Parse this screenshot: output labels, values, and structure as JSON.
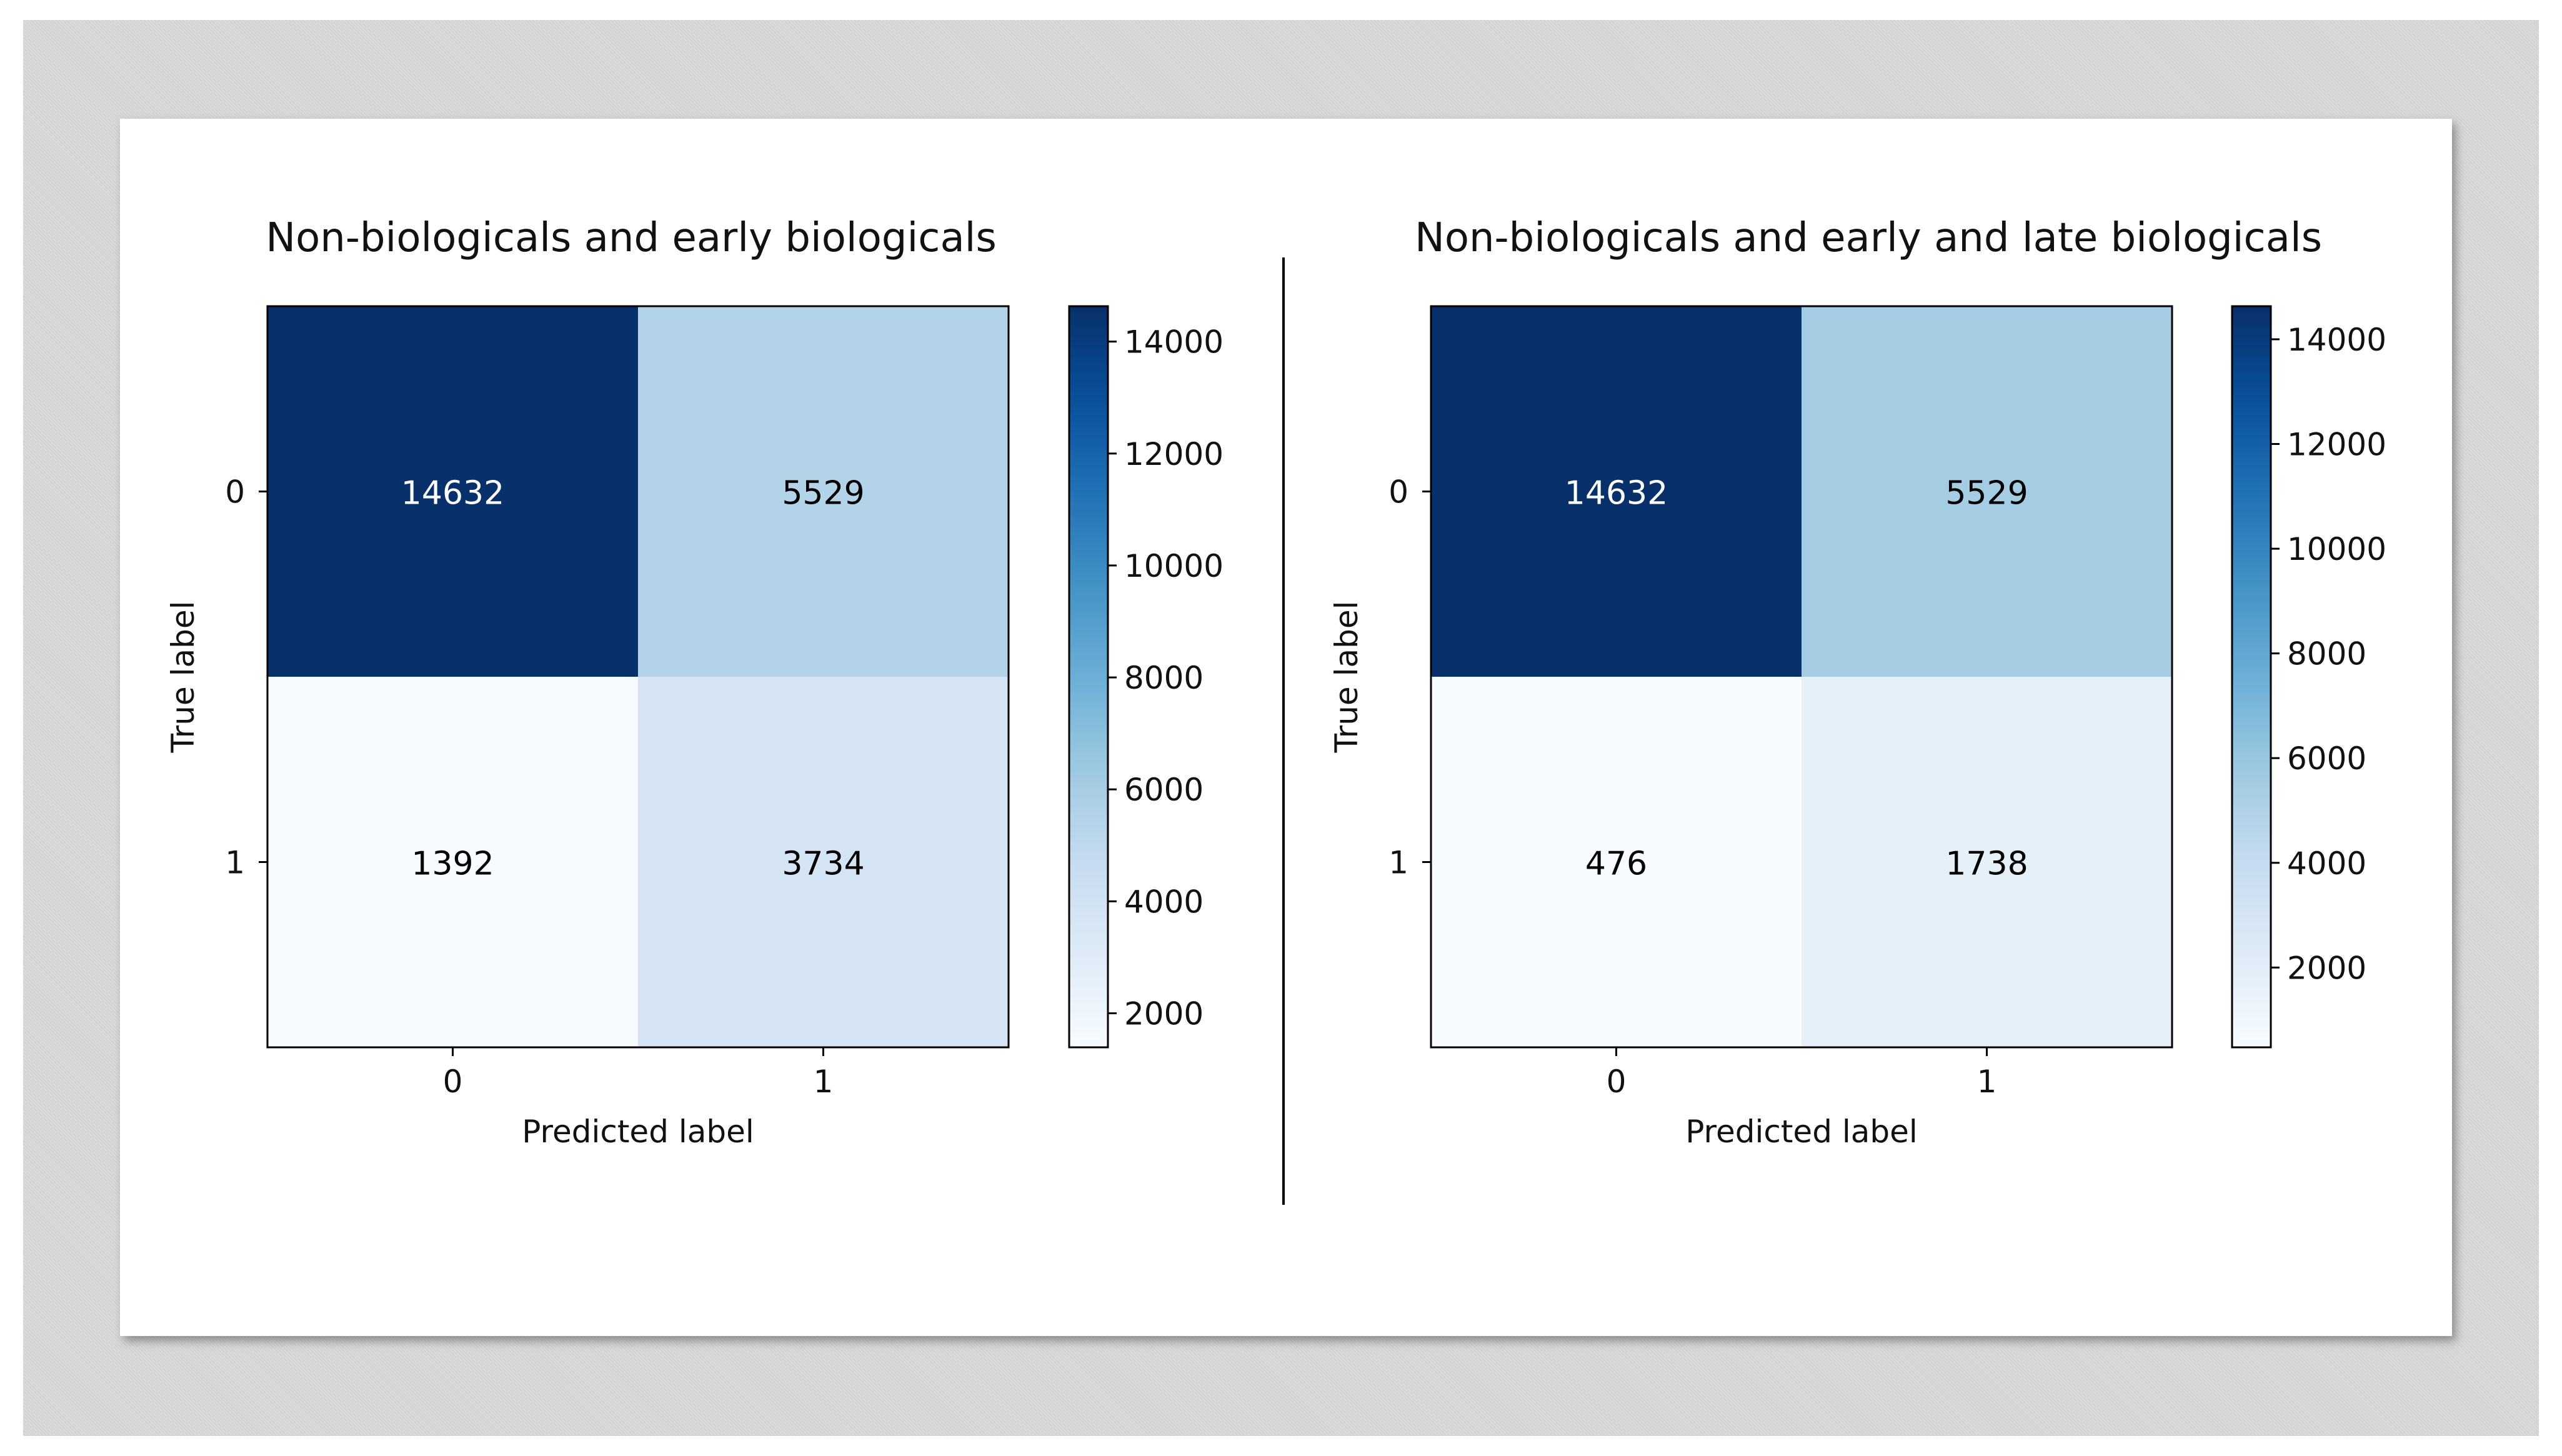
{
  "chart_data": [
    {
      "type": "heatmap",
      "title": "Non-biologicals and early biologicals",
      "xlabel": "Predicted label",
      "ylabel": "True label",
      "x_categories": [
        "0",
        "1"
      ],
      "y_categories": [
        "0",
        "1"
      ],
      "values": [
        [
          14632,
          5529
        ],
        [
          1392,
          3734
        ]
      ],
      "colormap": "Blues",
      "colorbar": {
        "min": 1392,
        "max": 14632,
        "ticks": [
          2000,
          4000,
          6000,
          8000,
          10000,
          12000,
          14000
        ]
      }
    },
    {
      "type": "heatmap",
      "title": "Non-biologicals and early and late biologicals",
      "xlabel": "Predicted label",
      "ylabel": "True label",
      "x_categories": [
        "0",
        "1"
      ],
      "y_categories": [
        "0",
        "1"
      ],
      "values": [
        [
          14632,
          5529
        ],
        [
          476,
          1738
        ]
      ],
      "colormap": "Blues",
      "colorbar": {
        "min": 476,
        "max": 14632,
        "ticks": [
          2000,
          4000,
          6000,
          8000,
          10000,
          12000,
          14000
        ]
      }
    }
  ],
  "colors": {
    "axis": "#000000",
    "light_text": "#ffffff",
    "dark_text": "#000000",
    "separator": "#000000"
  }
}
